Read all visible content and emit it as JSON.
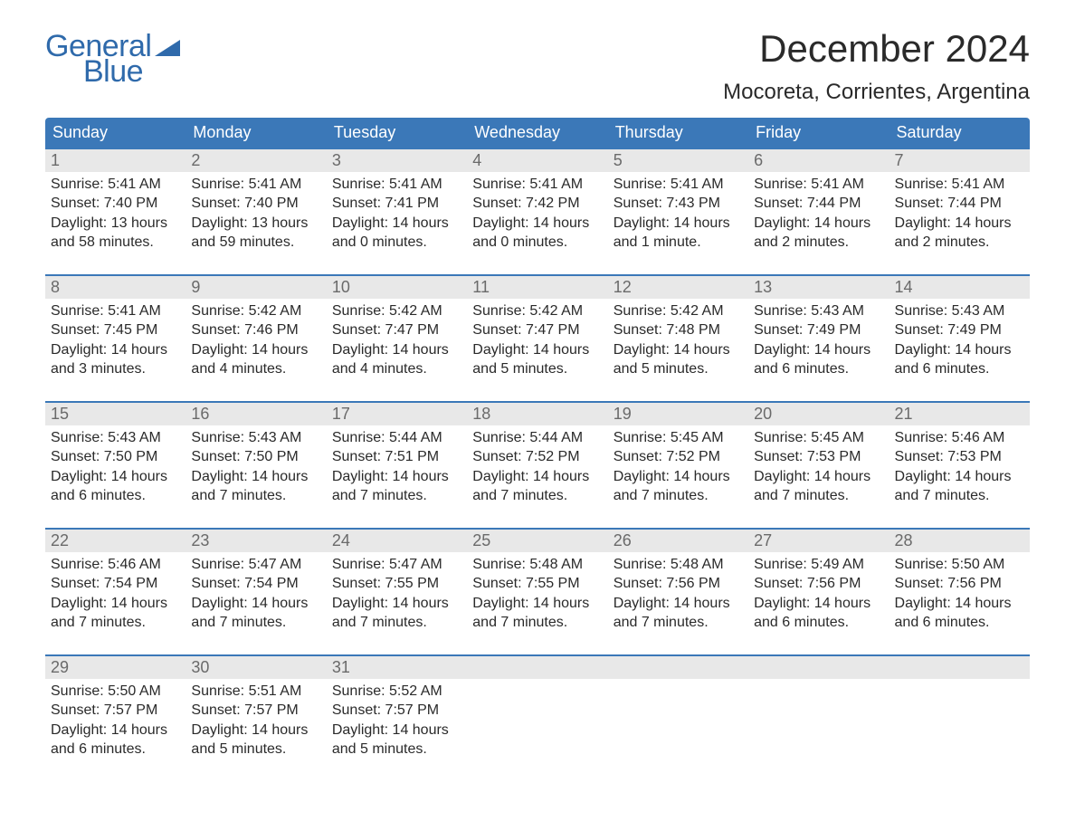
{
  "logo": {
    "line1": "General",
    "line2": "Blue",
    "color": "#2f6aab"
  },
  "title": "December 2024",
  "location": "Mocoreta, Corrientes, Argentina",
  "colors": {
    "header_bg": "#3b78b8",
    "header_text": "#ffffff",
    "week_border": "#3b78b8",
    "daynum_bg": "#e8e8e8",
    "daynum_text": "#6a6a6a",
    "body_text": "#2a2a2a",
    "page_bg": "#ffffff"
  },
  "weekdays": [
    "Sunday",
    "Monday",
    "Tuesday",
    "Wednesday",
    "Thursday",
    "Friday",
    "Saturday"
  ],
  "weeks": [
    [
      {
        "n": "1",
        "sunrise": "Sunrise: 5:41 AM",
        "sunset": "Sunset: 7:40 PM",
        "day1": "Daylight: 13 hours",
        "day2": "and 58 minutes."
      },
      {
        "n": "2",
        "sunrise": "Sunrise: 5:41 AM",
        "sunset": "Sunset: 7:40 PM",
        "day1": "Daylight: 13 hours",
        "day2": "and 59 minutes."
      },
      {
        "n": "3",
        "sunrise": "Sunrise: 5:41 AM",
        "sunset": "Sunset: 7:41 PM",
        "day1": "Daylight: 14 hours",
        "day2": "and 0 minutes."
      },
      {
        "n": "4",
        "sunrise": "Sunrise: 5:41 AM",
        "sunset": "Sunset: 7:42 PM",
        "day1": "Daylight: 14 hours",
        "day2": "and 0 minutes."
      },
      {
        "n": "5",
        "sunrise": "Sunrise: 5:41 AM",
        "sunset": "Sunset: 7:43 PM",
        "day1": "Daylight: 14 hours",
        "day2": "and 1 minute."
      },
      {
        "n": "6",
        "sunrise": "Sunrise: 5:41 AM",
        "sunset": "Sunset: 7:44 PM",
        "day1": "Daylight: 14 hours",
        "day2": "and 2 minutes."
      },
      {
        "n": "7",
        "sunrise": "Sunrise: 5:41 AM",
        "sunset": "Sunset: 7:44 PM",
        "day1": "Daylight: 14 hours",
        "day2": "and 2 minutes."
      }
    ],
    [
      {
        "n": "8",
        "sunrise": "Sunrise: 5:41 AM",
        "sunset": "Sunset: 7:45 PM",
        "day1": "Daylight: 14 hours",
        "day2": "and 3 minutes."
      },
      {
        "n": "9",
        "sunrise": "Sunrise: 5:42 AM",
        "sunset": "Sunset: 7:46 PM",
        "day1": "Daylight: 14 hours",
        "day2": "and 4 minutes."
      },
      {
        "n": "10",
        "sunrise": "Sunrise: 5:42 AM",
        "sunset": "Sunset: 7:47 PM",
        "day1": "Daylight: 14 hours",
        "day2": "and 4 minutes."
      },
      {
        "n": "11",
        "sunrise": "Sunrise: 5:42 AM",
        "sunset": "Sunset: 7:47 PM",
        "day1": "Daylight: 14 hours",
        "day2": "and 5 minutes."
      },
      {
        "n": "12",
        "sunrise": "Sunrise: 5:42 AM",
        "sunset": "Sunset: 7:48 PM",
        "day1": "Daylight: 14 hours",
        "day2": "and 5 minutes."
      },
      {
        "n": "13",
        "sunrise": "Sunrise: 5:43 AM",
        "sunset": "Sunset: 7:49 PM",
        "day1": "Daylight: 14 hours",
        "day2": "and 6 minutes."
      },
      {
        "n": "14",
        "sunrise": "Sunrise: 5:43 AM",
        "sunset": "Sunset: 7:49 PM",
        "day1": "Daylight: 14 hours",
        "day2": "and 6 minutes."
      }
    ],
    [
      {
        "n": "15",
        "sunrise": "Sunrise: 5:43 AM",
        "sunset": "Sunset: 7:50 PM",
        "day1": "Daylight: 14 hours",
        "day2": "and 6 minutes."
      },
      {
        "n": "16",
        "sunrise": "Sunrise: 5:43 AM",
        "sunset": "Sunset: 7:50 PM",
        "day1": "Daylight: 14 hours",
        "day2": "and 7 minutes."
      },
      {
        "n": "17",
        "sunrise": "Sunrise: 5:44 AM",
        "sunset": "Sunset: 7:51 PM",
        "day1": "Daylight: 14 hours",
        "day2": "and 7 minutes."
      },
      {
        "n": "18",
        "sunrise": "Sunrise: 5:44 AM",
        "sunset": "Sunset: 7:52 PM",
        "day1": "Daylight: 14 hours",
        "day2": "and 7 minutes."
      },
      {
        "n": "19",
        "sunrise": "Sunrise: 5:45 AM",
        "sunset": "Sunset: 7:52 PM",
        "day1": "Daylight: 14 hours",
        "day2": "and 7 minutes."
      },
      {
        "n": "20",
        "sunrise": "Sunrise: 5:45 AM",
        "sunset": "Sunset: 7:53 PM",
        "day1": "Daylight: 14 hours",
        "day2": "and 7 minutes."
      },
      {
        "n": "21",
        "sunrise": "Sunrise: 5:46 AM",
        "sunset": "Sunset: 7:53 PM",
        "day1": "Daylight: 14 hours",
        "day2": "and 7 minutes."
      }
    ],
    [
      {
        "n": "22",
        "sunrise": "Sunrise: 5:46 AM",
        "sunset": "Sunset: 7:54 PM",
        "day1": "Daylight: 14 hours",
        "day2": "and 7 minutes."
      },
      {
        "n": "23",
        "sunrise": "Sunrise: 5:47 AM",
        "sunset": "Sunset: 7:54 PM",
        "day1": "Daylight: 14 hours",
        "day2": "and 7 minutes."
      },
      {
        "n": "24",
        "sunrise": "Sunrise: 5:47 AM",
        "sunset": "Sunset: 7:55 PM",
        "day1": "Daylight: 14 hours",
        "day2": "and 7 minutes."
      },
      {
        "n": "25",
        "sunrise": "Sunrise: 5:48 AM",
        "sunset": "Sunset: 7:55 PM",
        "day1": "Daylight: 14 hours",
        "day2": "and 7 minutes."
      },
      {
        "n": "26",
        "sunrise": "Sunrise: 5:48 AM",
        "sunset": "Sunset: 7:56 PM",
        "day1": "Daylight: 14 hours",
        "day2": "and 7 minutes."
      },
      {
        "n": "27",
        "sunrise": "Sunrise: 5:49 AM",
        "sunset": "Sunset: 7:56 PM",
        "day1": "Daylight: 14 hours",
        "day2": "and 6 minutes."
      },
      {
        "n": "28",
        "sunrise": "Sunrise: 5:50 AM",
        "sunset": "Sunset: 7:56 PM",
        "day1": "Daylight: 14 hours",
        "day2": "and 6 minutes."
      }
    ],
    [
      {
        "n": "29",
        "sunrise": "Sunrise: 5:50 AM",
        "sunset": "Sunset: 7:57 PM",
        "day1": "Daylight: 14 hours",
        "day2": "and 6 minutes."
      },
      {
        "n": "30",
        "sunrise": "Sunrise: 5:51 AM",
        "sunset": "Sunset: 7:57 PM",
        "day1": "Daylight: 14 hours",
        "day2": "and 5 minutes."
      },
      {
        "n": "31",
        "sunrise": "Sunrise: 5:52 AM",
        "sunset": "Sunset: 7:57 PM",
        "day1": "Daylight: 14 hours",
        "day2": "and 5 minutes."
      },
      null,
      null,
      null,
      null
    ]
  ]
}
